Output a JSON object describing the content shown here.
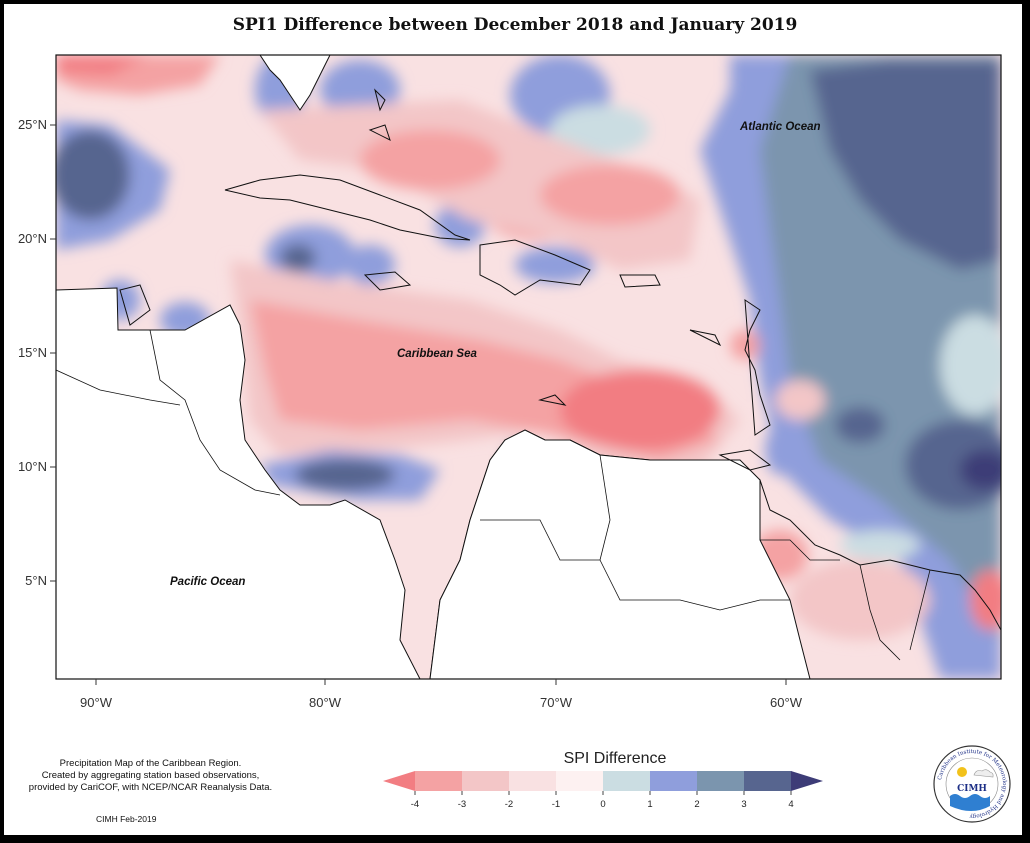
{
  "title": "SPI1 Difference between December 2018 and January 2019",
  "map": {
    "latitude_labels": [
      "25°N",
      "20°N",
      "15°N",
      "10°N",
      "5°N"
    ],
    "longitude_labels": [
      "90°W",
      "80°W",
      "70°W",
      "60°W"
    ],
    "places": {
      "atlantic": "Atlantic Ocean",
      "caribbean": "Caribbean Sea",
      "pacific": "Pacific Ocean"
    }
  },
  "legend": {
    "title": "SPI Difference",
    "ticks": [
      "-4",
      "-3",
      "-2",
      "-1",
      "0",
      "1",
      "2",
      "3",
      "4"
    ],
    "colors": [
      "#f27d82",
      "#f4a2a3",
      "#f3c6c7",
      "#f9e1e2",
      "#fdf1f1",
      "#cbdde2",
      "#8f9edc",
      "#7b95ae",
      "#57658f",
      "#3d3c77"
    ]
  },
  "credit": {
    "line1": "Precipitation Map of the Caribbean Region.",
    "line2": "Created by aggregating station based observations,",
    "line3": "provided by CariCOF, with NCEP/NCAR Reanalysis Data."
  },
  "footer": "CIMH Feb-2019",
  "logo": {
    "name": "CIMH",
    "ring_text": "Caribbean Institute for Meteorology and Hydrology"
  }
}
